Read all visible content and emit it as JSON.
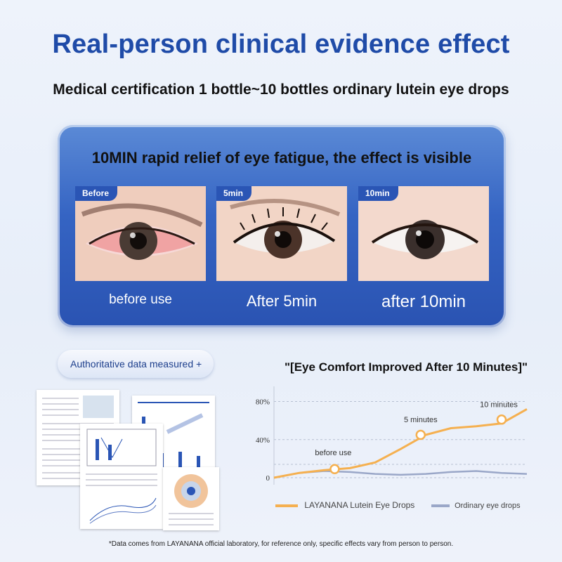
{
  "title": "Real-person clinical evidence effect",
  "subtitle": "Medical certification 1 bottle~10 bottles ordinary lutein eye drops",
  "panel": {
    "headline": "10MIN rapid relief of eye fatigue, the effect is visible",
    "photos": [
      {
        "tag": "Before",
        "caption": "before use"
      },
      {
        "tag": "5min",
        "caption": "After 5min"
      },
      {
        "tag": "10min",
        "caption": "after 10min"
      }
    ]
  },
  "data_button": {
    "label": "Authoritative data measured +"
  },
  "chart_title": "\"[Eye Comfort Improved After 10 Minutes]\"",
  "chart_data": {
    "type": "line",
    "yticks": [
      "80%",
      "40%",
      "0"
    ],
    "ylim": [
      0,
      90
    ],
    "series": [
      {
        "name": "LAYANANA Lutein Eye Drops",
        "color": "#f5b050",
        "x": [
          0,
          1,
          2,
          3,
          4,
          5,
          6,
          7,
          8,
          9,
          10
        ],
        "values": [
          0,
          5,
          8,
          10,
          16,
          30,
          45,
          52,
          54,
          57,
          72
        ]
      },
      {
        "name": "Ordinary eye drops",
        "color": "#9aa7c8",
        "x": [
          0,
          1,
          2,
          3,
          4,
          5,
          6,
          7,
          8,
          9,
          10
        ],
        "values": [
          0,
          5,
          7,
          6,
          4,
          3,
          4,
          6,
          7,
          5,
          4
        ]
      }
    ],
    "annotations": [
      {
        "label": "before use",
        "x": 2.4,
        "y": 9
      },
      {
        "label": "5 minutes",
        "x": 5.8,
        "y": 45
      },
      {
        "label": "10 minutes",
        "x": 9,
        "y": 61
      }
    ]
  },
  "footnote": "*Data comes from LAYANANA official laboratory, for reference only, specific effects vary from person to person."
}
